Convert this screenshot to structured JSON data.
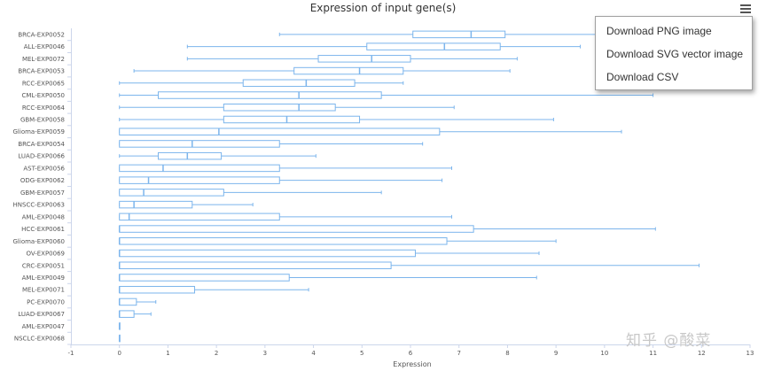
{
  "chart_data": {
    "type": "boxplot",
    "title": "Expression of input gene(s)",
    "xlabel": "Expression",
    "xlim": [
      -1,
      13
    ],
    "x_ticks": [
      "-1",
      "0",
      "1",
      "2",
      "3",
      "4",
      "5",
      "6",
      "7",
      "8",
      "9",
      "10",
      "11",
      "12",
      "13"
    ],
    "categories": [
      "BRCA-EXP0052",
      "ALL-EXP0046",
      "MEL-EXP0072",
      "BRCA-EXP0053",
      "RCC-EXP0065",
      "CML-EXP0050",
      "RCC-EXP0064",
      "GBM-EXP0058",
      "Glioma-EXP0059",
      "BRCA-EXP0054",
      "LUAD-EXP0066",
      "AST-EXP0056",
      "ODG-EXP0062",
      "GBM-EXP0057",
      "HNSCC-EXP0063",
      "AML-EXP0048",
      "HCC-EXP0061",
      "Glioma-EXP0060",
      "OV-EXP0069",
      "CRC-EXP0051",
      "AML-EXP0049",
      "MEL-EXP0071",
      "PC-EXP0070",
      "LUAD-EXP0067",
      "AML-EXP0047",
      "NSCLC-EXP0068"
    ],
    "boxes": [
      {
        "min": 3.3,
        "q1": 6.05,
        "median": 7.25,
        "q3": 7.95,
        "max": 10.1
      },
      {
        "min": 1.4,
        "q1": 5.1,
        "median": 6.7,
        "q3": 7.85,
        "max": 9.5
      },
      {
        "min": 1.4,
        "q1": 4.1,
        "median": 5.2,
        "q3": 6.0,
        "max": 8.2
      },
      {
        "min": 0.3,
        "q1": 3.6,
        "median": 4.95,
        "q3": 5.85,
        "max": 8.05
      },
      {
        "min": 0.0,
        "q1": 2.55,
        "median": 3.85,
        "q3": 4.85,
        "max": 5.85
      },
      {
        "min": 0.0,
        "q1": 0.8,
        "median": 3.7,
        "q3": 5.4,
        "max": 11.0
      },
      {
        "min": 0.0,
        "q1": 2.15,
        "median": 3.7,
        "q3": 4.45,
        "max": 6.9
      },
      {
        "min": 0.0,
        "q1": 2.15,
        "median": 3.45,
        "q3": 4.95,
        "max": 8.95
      },
      {
        "min": 0.0,
        "q1": 0.0,
        "median": 2.05,
        "q3": 6.6,
        "max": 10.35
      },
      {
        "min": 0.0,
        "q1": 0.0,
        "median": 1.5,
        "q3": 3.3,
        "max": 6.25
      },
      {
        "min": 0.0,
        "q1": 0.8,
        "median": 1.4,
        "q3": 2.1,
        "max": 4.05
      },
      {
        "min": 0.0,
        "q1": 0.0,
        "median": 0.9,
        "q3": 3.3,
        "max": 6.85
      },
      {
        "min": 0.0,
        "q1": 0.0,
        "median": 0.6,
        "q3": 3.3,
        "max": 6.65
      },
      {
        "min": 0.0,
        "q1": 0.0,
        "median": 0.5,
        "q3": 2.15,
        "max": 5.4
      },
      {
        "min": 0.0,
        "q1": 0.0,
        "median": 0.3,
        "q3": 1.5,
        "max": 2.75
      },
      {
        "min": 0.0,
        "q1": 0.0,
        "median": 0.2,
        "q3": 3.3,
        "max": 6.85
      },
      {
        "min": 0.0,
        "q1": 0.0,
        "median": 0.0,
        "q3": 7.3,
        "max": 11.05
      },
      {
        "min": 0.0,
        "q1": 0.0,
        "median": 0.0,
        "q3": 6.75,
        "max": 9.0
      },
      {
        "min": 0.0,
        "q1": 0.0,
        "median": 0.0,
        "q3": 6.1,
        "max": 8.65
      },
      {
        "min": 0.0,
        "q1": 0.0,
        "median": 0.0,
        "q3": 5.6,
        "max": 11.95
      },
      {
        "min": 0.0,
        "q1": 0.0,
        "median": 0.0,
        "q3": 3.5,
        "max": 8.6
      },
      {
        "min": 0.0,
        "q1": 0.0,
        "median": 0.0,
        "q3": 1.55,
        "max": 3.9
      },
      {
        "min": 0.0,
        "q1": 0.0,
        "median": 0.0,
        "q3": 0.35,
        "max": 0.75
      },
      {
        "min": 0.0,
        "q1": 0.0,
        "median": 0.0,
        "q3": 0.3,
        "max": 0.65
      },
      {
        "min": 0.0,
        "q1": 0.0,
        "median": 0.0,
        "q3": 0.0,
        "max": 0.0
      },
      {
        "min": 0.0,
        "q1": 0.0,
        "median": 0.0,
        "q3": 0.0,
        "max": 0.0
      }
    ],
    "grid": false,
    "box_color": "#7cb5ec"
  },
  "export_menu": {
    "items": [
      "Download PNG image",
      "Download SVG vector image",
      "Download CSV"
    ]
  },
  "watermark": "知乎 @酸菜"
}
